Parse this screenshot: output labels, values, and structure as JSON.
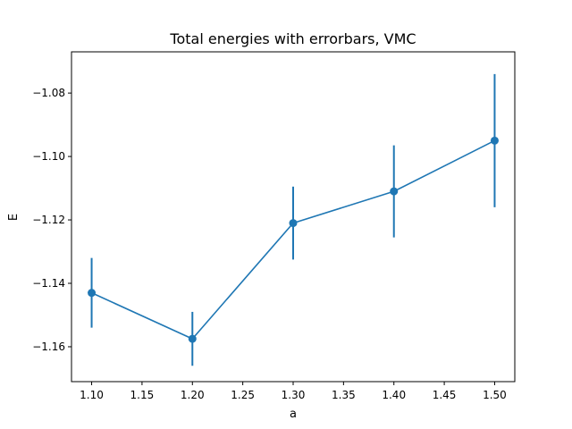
{
  "chart_data": {
    "type": "line",
    "title": "Total energies with errorbars, VMC",
    "xlabel": "a",
    "ylabel": "E",
    "x": [
      1.1,
      1.2,
      1.3,
      1.4,
      1.5
    ],
    "series": [
      {
        "values": [
          -1.143,
          -1.1575,
          -1.121,
          -1.111,
          -1.095
        ],
        "errors": [
          0.011,
          0.0085,
          0.0115,
          0.0145,
          0.021
        ],
        "color": "#1f77b4",
        "marker": "circle"
      }
    ],
    "xlim": [
      1.08,
      1.52
    ],
    "ylim": [
      -1.171,
      -1.067
    ],
    "xticks": [
      1.1,
      1.15,
      1.2,
      1.25,
      1.3,
      1.35,
      1.4,
      1.45,
      1.5
    ],
    "xtick_labels": [
      "1.10",
      "1.15",
      "1.20",
      "1.25",
      "1.30",
      "1.35",
      "1.40",
      "1.45",
      "1.50"
    ],
    "yticks": [
      -1.16,
      -1.14,
      -1.12,
      -1.1,
      -1.08
    ],
    "ytick_labels": [
      "−1.16",
      "−1.14",
      "−1.12",
      "−1.10",
      "−1.08"
    ],
    "grid": false,
    "legend": "none"
  }
}
